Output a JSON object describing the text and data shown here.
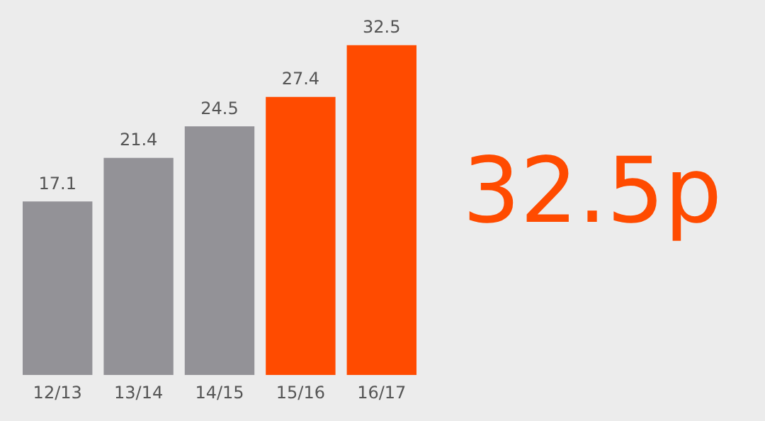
{
  "chart_data": {
    "type": "bar",
    "categories": [
      "12/13",
      "13/14",
      "14/15",
      "15/16",
      "16/17"
    ],
    "values": [
      17.1,
      21.4,
      24.5,
      27.4,
      32.5
    ],
    "colors": [
      "#939297",
      "#939297",
      "#939297",
      "#ff4b00",
      "#ff4b00"
    ],
    "data_labels": true,
    "legend": false,
    "grid": false,
    "annotations": [
      "32.5p"
    ]
  }
}
